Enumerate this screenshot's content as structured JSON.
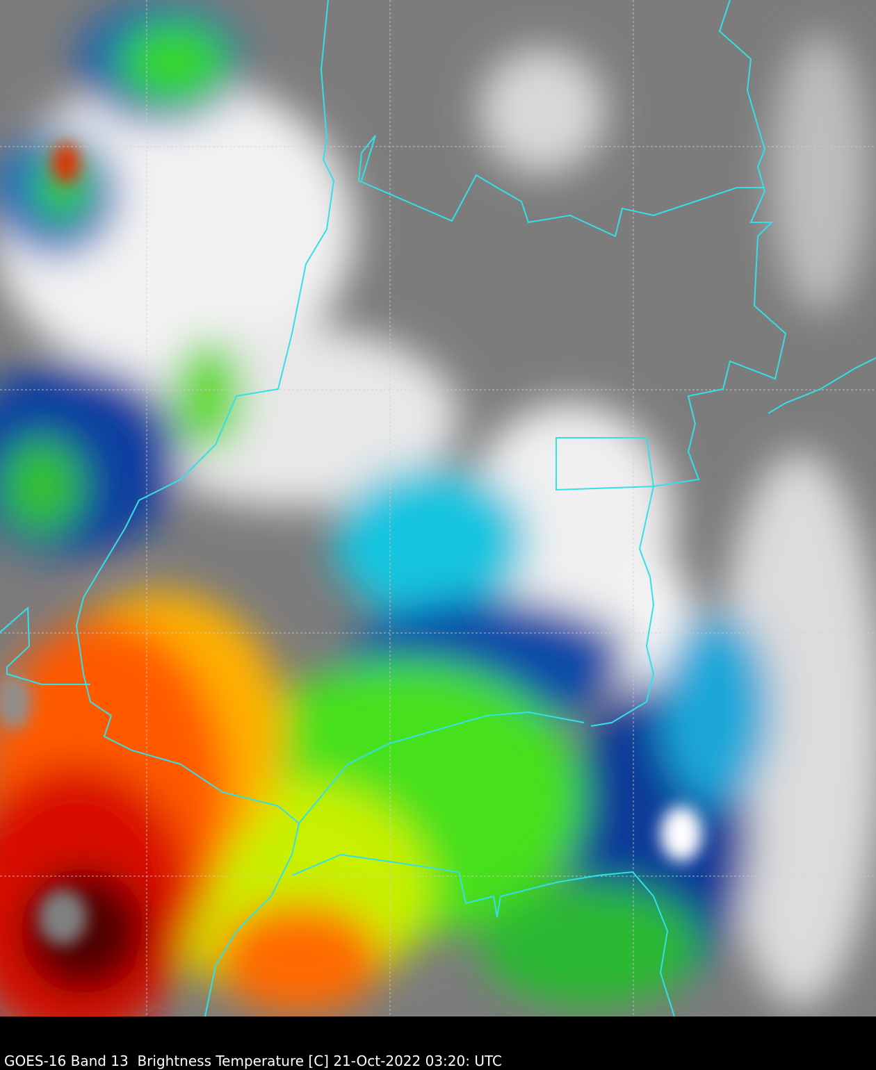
{
  "caption": "GOES-16 Band 13  Brightness Temperature [C] 21-Oct-2022 03:20: UTC",
  "colors": {
    "background": "#000000",
    "border_lines": "#33e0e8",
    "grid_lines": "#d0d0d0",
    "cold_cloud_gray": "#7a7a7a",
    "white": "#f4f4f4",
    "cyan": "#19c8e0",
    "blue": "#0a3c9a",
    "green": "#3ce01e",
    "yellow": "#f0f000",
    "orange": "#ff8a00",
    "red": "#e01000",
    "dark_red": "#300000"
  }
}
